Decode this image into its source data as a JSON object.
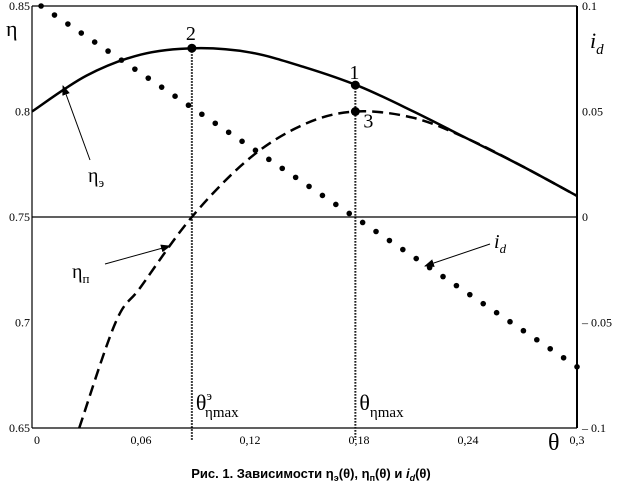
{
  "chart_data": {
    "type": "line",
    "caption": "Рис. 1. Зависимости ηэ(θ), ηп(θ) и id(θ)",
    "caption_parts": {
      "prefix": "Рис. 1. Зависимости ",
      "a": "η",
      "a_sub": "э",
      "a_arg": "(θ), ",
      "b": "η",
      "b_sub": "п",
      "b_arg": "(θ) и ",
      "c": "i",
      "c_sub": "d",
      "c_arg": "(θ)"
    },
    "xlabel": "θ",
    "ylabel_left": "η",
    "ylabel_right": {
      "main": "i",
      "sub": "d"
    },
    "xlim": [
      0,
      0.3
    ],
    "ylim_left": [
      0.65,
      0.85
    ],
    "ylim_right": [
      -0.1,
      0.1
    ],
    "x_ticks": [
      "0",
      "0,06",
      "0,12",
      "0,18",
      "0,24",
      "0,3"
    ],
    "x_tick_values": [
      0,
      0.06,
      0.12,
      0.18,
      0.24,
      0.3
    ],
    "y_left_ticks": [
      "0.65",
      "0.7",
      "0.75",
      "0.8",
      "0.85"
    ],
    "y_left_tick_values": [
      0.65,
      0.7,
      0.75,
      0.8,
      0.85
    ],
    "y_right_ticks": [
      "– 0.1",
      "– 0.05",
      "0",
      "0.05",
      "0.1"
    ],
    "y_right_tick_values": [
      -0.1,
      -0.05,
      0,
      0.05,
      0.1
    ],
    "series": [
      {
        "name": "ηэ",
        "axis": "left",
        "style": "solid",
        "x": [
          0,
          0.03,
          0.06,
          0.09,
          0.12,
          0.15,
          0.18,
          0.21,
          0.24,
          0.27,
          0.3
        ],
        "y": [
          0.8,
          0.817,
          0.827,
          0.83,
          0.828,
          0.821,
          0.812,
          0.8,
          0.787,
          0.774,
          0.76
        ]
      },
      {
        "name": "ηп",
        "axis": "left",
        "style": "dashed",
        "x": [
          0.026,
          0.046,
          0.06,
          0.088,
          0.12,
          0.15,
          0.178,
          0.21,
          0.24,
          0.27,
          0.3
        ],
        "y": [
          0.65,
          0.7,
          0.717,
          0.75,
          0.778,
          0.794,
          0.8,
          0.797,
          0.787,
          0.774,
          0.76
        ]
      },
      {
        "name": "id",
        "axis": "right",
        "style": "dotted",
        "x": [
          0.005,
          0.3
        ],
        "y": [
          0.1,
          -0.071
        ]
      }
    ],
    "series_labels": [
      {
        "main": "η",
        "sub": "э"
      },
      {
        "main": "η",
        "sub": "п"
      },
      {
        "main": "i",
        "sub": "d"
      }
    ],
    "points": [
      {
        "label": "1",
        "x": 0.178,
        "y": 0.8125,
        "axis": "left"
      },
      {
        "label": "2",
        "x": 0.088,
        "y": 0.83,
        "axis": "left"
      },
      {
        "label": "3",
        "x": 0.178,
        "y": 0.8,
        "axis": "left"
      }
    ],
    "vlines": [
      {
        "x": 0.088,
        "label": {
          "main": "θ",
          "sup": "э",
          "sub": "ηmax"
        }
      },
      {
        "x": 0.178,
        "label": {
          "main": "θ",
          "sup": "",
          "sub": "ηmax"
        }
      }
    ],
    "hline_left_value": 0.75,
    "grid": false
  }
}
